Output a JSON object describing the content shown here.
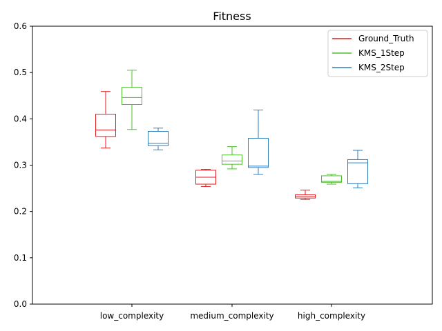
{
  "chart_data": {
    "type": "boxplot",
    "title": "Fitness",
    "xlabel": "",
    "ylabel": "",
    "ylim": [
      0.0,
      0.6
    ],
    "yticks": [
      "0.0",
      "0.1",
      "0.2",
      "0.3",
      "0.4",
      "0.5",
      "0.6"
    ],
    "categories": [
      "low_complexity",
      "medium_complexity",
      "high_complexity"
    ],
    "grid": false,
    "legend_position": "top-right",
    "series": [
      {
        "name": "Ground_Truth",
        "color": "#e41a1c",
        "boxes": [
          {
            "min": 0.337,
            "q1": 0.362,
            "median": 0.376,
            "q3": 0.41,
            "max": 0.459
          },
          {
            "min": 0.254,
            "q1": 0.259,
            "median": 0.274,
            "q3": 0.289,
            "max": 0.291
          },
          {
            "min": 0.226,
            "q1": 0.229,
            "median": 0.232,
            "q3": 0.236,
            "max": 0.246
          }
        ]
      },
      {
        "name": "KMS_1Step",
        "color": "#4dbe2a",
        "boxes": [
          {
            "min": 0.377,
            "q1": 0.431,
            "median": 0.446,
            "q3": 0.468,
            "max": 0.505
          },
          {
            "min": 0.292,
            "q1": 0.302,
            "median": 0.309,
            "q3": 0.322,
            "max": 0.34
          },
          {
            "min": 0.259,
            "q1": 0.263,
            "median": 0.265,
            "q3": 0.277,
            "max": 0.28
          }
        ]
      },
      {
        "name": "KMS_2Step",
        "color": "#2f7ebc",
        "boxes": [
          {
            "min": 0.333,
            "q1": 0.342,
            "median": 0.347,
            "q3": 0.373,
            "max": 0.38
          },
          {
            "min": 0.28,
            "q1": 0.295,
            "median": 0.298,
            "q3": 0.358,
            "max": 0.419
          },
          {
            "min": 0.251,
            "q1": 0.26,
            "median": 0.305,
            "q3": 0.312,
            "max": 0.332
          }
        ]
      }
    ]
  }
}
